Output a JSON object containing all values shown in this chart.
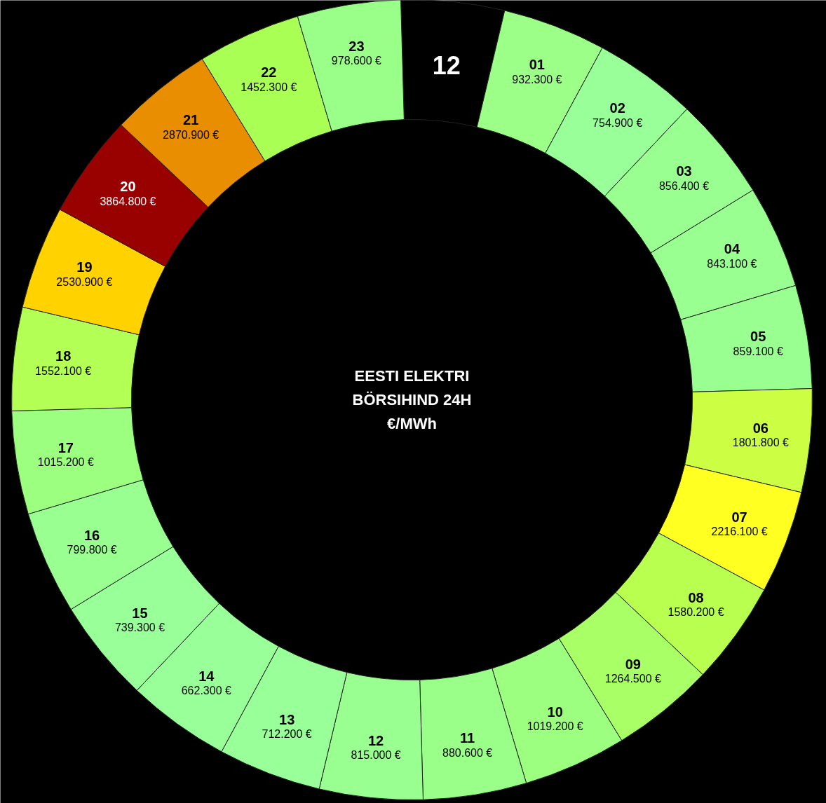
{
  "chart_data": {
    "type": "other",
    "title": "EESTI ELEKTRI\nBÖRSIHIND 24H\n€/MWh",
    "categories": [
      "12",
      "01",
      "02",
      "03",
      "04",
      "05",
      "06",
      "07",
      "08",
      "09",
      "10",
      "11",
      "12",
      "13",
      "14",
      "15",
      "16",
      "17",
      "18",
      "19",
      "20",
      "21",
      "22",
      "23"
    ],
    "values": [
      null,
      932.3,
      754.9,
      856.4,
      843.1,
      859.1,
      1801.8,
      2216.1,
      1580.2,
      1264.5,
      1019.2,
      880.6,
      815.0,
      712.2,
      662.3,
      739.3,
      799.8,
      1015.2,
      1552.1,
      2530.9,
      3864.8,
      2870.9,
      1452.3,
      978.6
    ],
    "value_labels": [
      null,
      "932.300 €",
      "754.900 €",
      "856.400 €",
      "843.100 €",
      "859.100 €",
      "1801.800 €",
      "2216.100 €",
      "1580.200 €",
      "1264.500 €",
      "1019.200 €",
      "880.600 €",
      "815.000 €",
      "712.200 €",
      "662.300 €",
      "739.300 €",
      "799.800 €",
      "1015.200 €",
      "1552.100 €",
      "2530.900 €",
      "3864.800 €",
      "2870.900 €",
      "1452.300 €",
      "978.600 €"
    ],
    "colors": [
      "#000000",
      "#9cff88",
      "#99ff99",
      "#99ff90",
      "#99ff90",
      "#99ff90",
      "#ccff44",
      "#ffff22",
      "#b8ff50",
      "#a8ff66",
      "#9cff80",
      "#99ff88",
      "#99ff90",
      "#99ff99",
      "#99ff99",
      "#99ff99",
      "#99ff90",
      "#9cff80",
      "#b4ff55",
      "#ffd200",
      "#990000",
      "#e88e00",
      "#aaff55",
      "#99ff88"
    ]
  }
}
